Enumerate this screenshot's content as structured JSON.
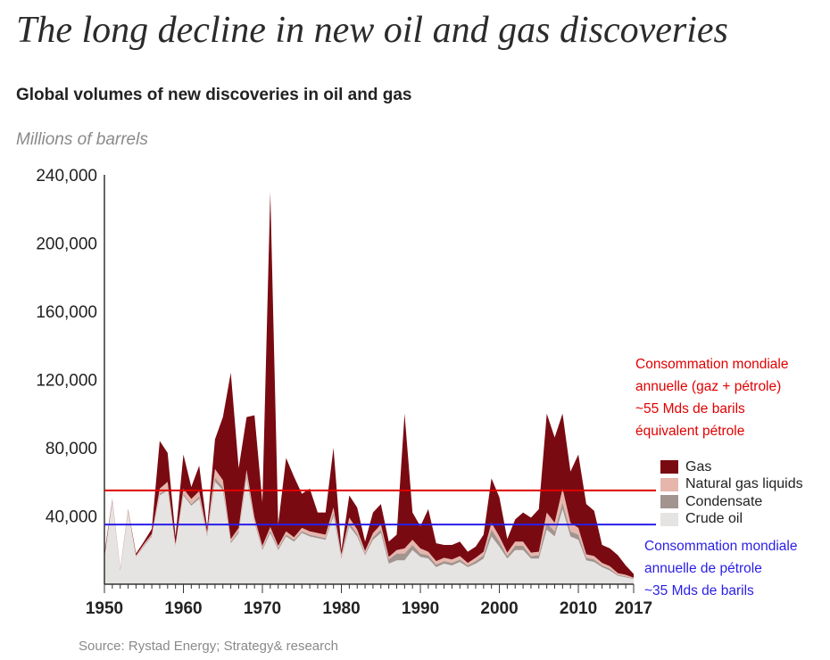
{
  "title": "The long decline in new oil and gas discoveries",
  "subtitle": "Global volumes of new discoveries in oil and gas",
  "unit_label": "Millions of barrels",
  "source": "Source: Rystad Energy; Strategy& research",
  "colors": {
    "gas": "#7a0a12",
    "ngl": "#e6b6ad",
    "condensate": "#a2948f",
    "crude": "#e6e4e3",
    "red_line": "#e00000",
    "blue_line": "#2a1ee6"
  },
  "annotations": {
    "red": [
      "Consommation mondiale",
      "annuelle (gaz + pétrole)",
      "~55 Mds de barils",
      "équivalent pétrole"
    ],
    "blue": [
      "Consommation mondiale",
      "annuelle de pétrole",
      "~35 Mds de barils"
    ]
  },
  "chart_data": {
    "type": "area",
    "stacked": true,
    "title": "Global volumes of new discoveries in oil and gas",
    "ylabel": "Millions of barrels",
    "ylim": [
      0,
      240000
    ],
    "y_ticks": [
      40000,
      80000,
      120000,
      160000,
      200000,
      240000
    ],
    "y_tick_labels": [
      "40,000",
      "80,000",
      "120,000",
      "160,000",
      "200,000",
      "240,000"
    ],
    "x_ticks": [
      1950,
      1960,
      1970,
      1980,
      1990,
      2000,
      2010,
      2017
    ],
    "x_tick_labels": [
      "1950",
      "1960",
      "1970",
      "1980",
      "1990",
      "2000",
      "2010",
      "2017"
    ],
    "x": [
      1950,
      1951,
      1952,
      1953,
      1954,
      1955,
      1956,
      1957,
      1958,
      1959,
      1960,
      1961,
      1962,
      1963,
      1964,
      1965,
      1966,
      1967,
      1968,
      1969,
      1970,
      1971,
      1972,
      1973,
      1974,
      1975,
      1976,
      1977,
      1978,
      1979,
      1980,
      1981,
      1982,
      1983,
      1984,
      1985,
      1986,
      1987,
      1988,
      1989,
      1990,
      1991,
      1992,
      1993,
      1994,
      1995,
      1996,
      1997,
      1998,
      1999,
      2000,
      2001,
      2002,
      2003,
      2004,
      2005,
      2006,
      2007,
      2008,
      2009,
      2010,
      2011,
      2012,
      2013,
      2014,
      2015,
      2016,
      2017
    ],
    "series": [
      {
        "name": "Crude oil",
        "values": [
          15000,
          48000,
          8000,
          42000,
          16000,
          22000,
          28000,
          52000,
          55000,
          22000,
          52000,
          46000,
          50000,
          28000,
          60000,
          55000,
          24000,
          30000,
          62000,
          36000,
          20000,
          30000,
          20000,
          28000,
          25000,
          30000,
          28000,
          27000,
          26000,
          40000,
          15000,
          34000,
          28000,
          17000,
          26000,
          30000,
          12000,
          14000,
          14000,
          20000,
          16000,
          15000,
          10000,
          12000,
          11000,
          13000,
          10000,
          12000,
          15000,
          28000,
          22000,
          15000,
          20000,
          20000,
          15000,
          15000,
          32000,
          28000,
          44000,
          28000,
          26000,
          14000,
          13000,
          10000,
          8000,
          5000,
          4000,
          3000
        ]
      },
      {
        "name": "Condensate",
        "values": [
          500,
          500,
          300,
          500,
          300,
          500,
          500,
          1000,
          1000,
          500,
          1000,
          1000,
          1500,
          1000,
          2500,
          2000,
          1000,
          1000,
          2000,
          1000,
          1000,
          1500,
          1000,
          1000,
          1000,
          1000,
          1000,
          1000,
          1000,
          2000,
          1000,
          2000,
          1500,
          1000,
          1500,
          2000,
          2500,
          4000,
          4000,
          3000,
          2000,
          2000,
          1500,
          1500,
          1500,
          1500,
          1000,
          1500,
          2000,
          4000,
          3000,
          1500,
          2500,
          2500,
          1500,
          2000,
          4000,
          3000,
          4000,
          3000,
          3000,
          1500,
          1500,
          1000,
          1000,
          500,
          500,
          300
        ]
      },
      {
        "name": "Natural gas liquids",
        "values": [
          500,
          1000,
          300,
          1000,
          500,
          1000,
          1000,
          3000,
          4000,
          1000,
          3000,
          3000,
          3000,
          1500,
          5000,
          4000,
          1500,
          2000,
          3000,
          2000,
          1500,
          2000,
          1500,
          2000,
          1500,
          2000,
          2000,
          2000,
          2000,
          3000,
          1500,
          3000,
          2500,
          1500,
          2500,
          3000,
          1500,
          2000,
          3000,
          3000,
          3000,
          2000,
          2000,
          2000,
          2000,
          2000,
          1500,
          2000,
          2000,
          4000,
          3000,
          2000,
          2500,
          2500,
          2000,
          2000,
          6000,
          5000,
          8000,
          5000,
          4000,
          2000,
          2000,
          1500,
          1500,
          1000,
          1000,
          500
        ]
      },
      {
        "name": "Gas",
        "values": [
          2000,
          500,
          400,
          500,
          1200,
          1500,
          3000,
          28000,
          17000,
          4500,
          20000,
          7000,
          15000,
          2500,
          17500,
          37000,
          97500,
          35000,
          31000,
          60000,
          25500,
          196500,
          12500,
          43000,
          35500,
          20000,
          25000,
          12000,
          13000,
          35000,
          2500,
          13000,
          13000,
          5500,
          12000,
          12000,
          9000,
          9000,
          79000,
          16000,
          13000,
          25000,
          10500,
          7500,
          8500,
          8500,
          6500,
          6500,
          10000,
          26000,
          23000,
          8000,
          13000,
          17000,
          20500,
          25000,
          58000,
          50000,
          44000,
          30000,
          43000,
          29500,
          26500,
          10500,
          10500,
          10500,
          5500,
          2200
        ]
      }
    ],
    "reference_lines": [
      {
        "value": 55000,
        "color": "#e00000"
      },
      {
        "value": 35000,
        "color": "#2a1ee6"
      }
    ],
    "legend": {
      "position": "right",
      "entries": [
        "Gas",
        "Natural gas liquids",
        "Condensate",
        "Crude oil"
      ]
    },
    "grid": false
  }
}
